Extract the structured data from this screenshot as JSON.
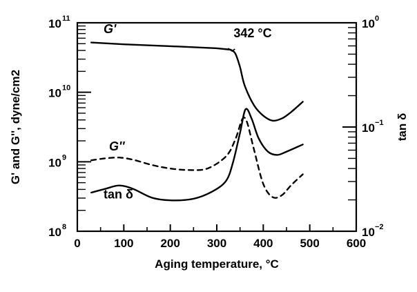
{
  "chart_data": {
    "type": "line",
    "xlabel": "Aging temperature, °C",
    "ylabel_left": "G' and G'', dyne/cm2",
    "ylabel_right": "tan δ",
    "x_range": [
      0,
      600
    ],
    "x_ticks": [
      0,
      100,
      200,
      300,
      400,
      500,
      600
    ],
    "x_tick_labels": [
      "0",
      "100",
      "200",
      "300",
      "400",
      "500",
      "600"
    ],
    "y_left_scale": "log",
    "y_left_range": [
      100000000.0,
      100000000000.0
    ],
    "y_left_ticks": [
      {
        "value": 100000000.0,
        "base": "10",
        "exp": "8"
      },
      {
        "value": 1000000000.0,
        "base": "10",
        "exp": "9"
      },
      {
        "value": 10000000000.0,
        "base": "10",
        "exp": "10"
      },
      {
        "value": 100000000000.0,
        "base": "10",
        "exp": "11"
      }
    ],
    "y_right_scale": "log",
    "y_right_range": [
      0.01,
      1
    ],
    "y_right_ticks": [
      {
        "value": 1,
        "base": "10",
        "exp": "0"
      },
      {
        "value": 0.1,
        "base": "10",
        "exp": "−1"
      },
      {
        "value": 0.01,
        "base": "10",
        "exp": "−2"
      }
    ],
    "grid": false,
    "series": [
      {
        "name": "G'",
        "axis": "left",
        "style": "solid",
        "color": "#000000",
        "x": [
          30,
          100,
          200,
          300,
          330,
          340,
          350,
          360,
          380,
          400,
          420,
          440,
          460,
          485
        ],
        "y": [
          52000000000.0,
          49000000000.0,
          46000000000.0,
          43000000000.0,
          41000000000.0,
          36000000000.0,
          23000000000.0,
          12500000000.0,
          6500000000.0,
          4600000000.0,
          3900000000.0,
          4200000000.0,
          5200000000.0,
          7300000000.0
        ]
      },
      {
        "name": "G''",
        "axis": "left",
        "style": "dashed",
        "color": "#000000",
        "x": [
          30,
          60,
          90,
          120,
          160,
          200,
          240,
          280,
          320,
          340,
          355,
          365,
          380,
          400,
          420,
          440,
          460,
          485
        ],
        "y": [
          1050000000.0,
          1120000000.0,
          1150000000.0,
          1070000000.0,
          900000000.0,
          800000000.0,
          760000000.0,
          800000000.0,
          1200000000.0,
          2100000000.0,
          4100000000.0,
          3700000000.0,
          1500000000.0,
          480000000.0,
          310000000.0,
          330000000.0,
          460000000.0,
          660000000.0
        ]
      },
      {
        "name": "tan δ",
        "axis": "right",
        "style": "solid",
        "color": "#000000",
        "x": [
          30,
          60,
          90,
          120,
          160,
          200,
          250,
          290,
          320,
          335,
          350,
          362,
          375,
          390,
          410,
          430,
          450,
          485
        ],
        "y": [
          0.0235,
          0.0255,
          0.0275,
          0.0255,
          0.021,
          0.0198,
          0.0205,
          0.024,
          0.0305,
          0.046,
          0.088,
          0.148,
          0.12,
          0.078,
          0.058,
          0.054,
          0.058,
          0.068
        ]
      }
    ],
    "annotations": [
      {
        "text": "342 °C",
        "x": 342,
        "series": "G'"
      },
      {
        "text": "G'",
        "series": "G'"
      },
      {
        "text": "G''",
        "series": "G''"
      },
      {
        "text": "tan δ",
        "series": "tan δ"
      }
    ]
  }
}
